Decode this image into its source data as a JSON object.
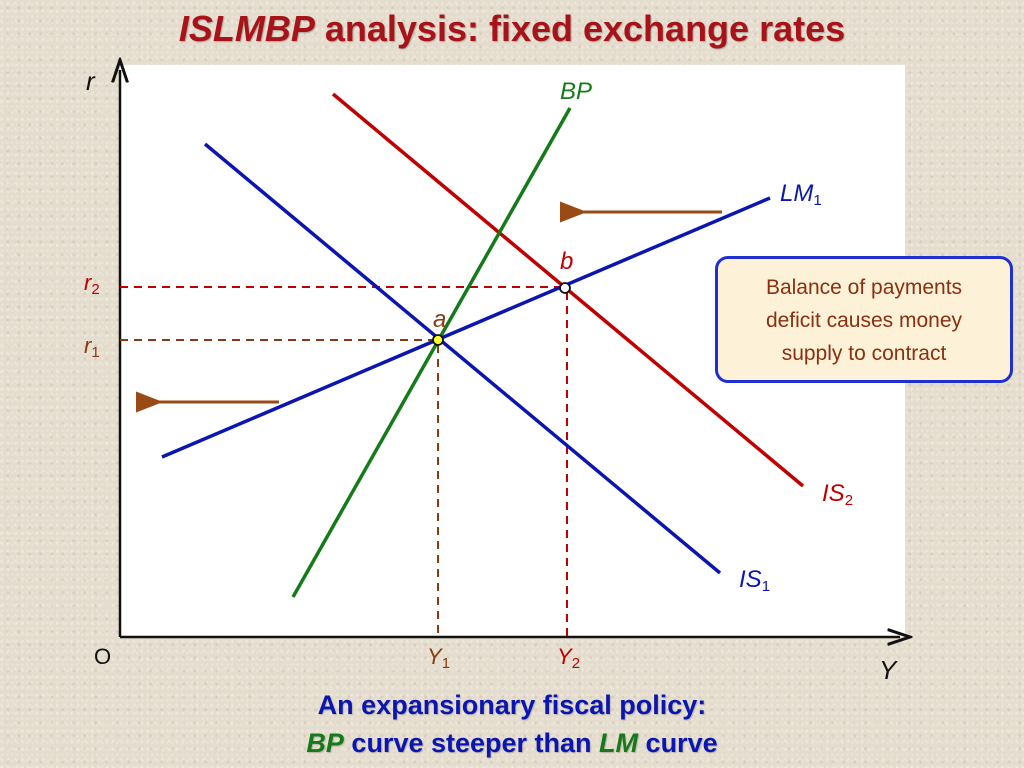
{
  "title": {
    "italic_part": "ISLMBP",
    "rest": "analysis: fixed exchange rates"
  },
  "axes": {
    "y_label": "r",
    "x_label": "Y",
    "origin_label": "O"
  },
  "curves": {
    "bp": {
      "label": "BP",
      "color": "#157a1a"
    },
    "lm1": {
      "label": "LM",
      "sub": "1",
      "color": "#0b16b0"
    },
    "is1": {
      "label": "IS",
      "sub": "1",
      "color": "#0b16b0"
    },
    "is2": {
      "label": "IS",
      "sub": "2",
      "color": "#c00000"
    }
  },
  "points": {
    "a": "a",
    "b": "b"
  },
  "rates": {
    "r1": {
      "label": "r",
      "sub": "1"
    },
    "r2": {
      "label": "r",
      "sub": "2"
    }
  },
  "outputs": {
    "y1": {
      "label": "Y",
      "sub": "1"
    },
    "y2": {
      "label": "Y",
      "sub": "2"
    }
  },
  "callout": {
    "lines": [
      "Balance of payments",
      "deficit causes money",
      "supply to contract"
    ]
  },
  "caption": {
    "line1": "An expansionary fiscal policy:",
    "line2_a": "BP",
    "line2_b": "curve steeper than",
    "line2_c": "LM",
    "line2_d": "curve"
  }
}
